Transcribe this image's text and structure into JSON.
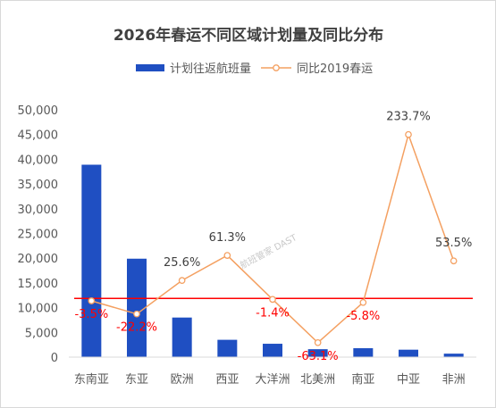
{
  "chart_data": {
    "type": "bar",
    "title": "2026年春运不同区域计划量及同比分布",
    "categories": [
      "东南亚",
      "东亚",
      "欧洲",
      "西亚",
      "大洋洲",
      "北美洲",
      "南亚",
      "中亚",
      "非洲"
    ],
    "series": [
      {
        "name": "计划往返航班量",
        "type": "bar",
        "axis": "left",
        "color": "#1f4fc2",
        "values": [
          38900,
          19900,
          8000,
          3500,
          2700,
          1600,
          1800,
          1500,
          700
        ]
      },
      {
        "name": "同比2019春运",
        "type": "line",
        "axis": "right",
        "color": "#f4a061",
        "values": [
          -3.5,
          -22.2,
          25.6,
          61.3,
          -1.4,
          -63.1,
          -5.8,
          233.7,
          53.5
        ],
        "labels": [
          "-3.5%",
          "-22.2%",
          "25.6%",
          "61.3%",
          "-1.4%",
          "-63.1%",
          "-5.8%",
          "233.7%",
          "53.5%"
        ]
      }
    ],
    "yticks": [
      "0",
      "5,000",
      "10,000",
      "15,000",
      "20,000",
      "25,000",
      "30,000",
      "35,000",
      "40,000",
      "45,000",
      "50,000"
    ],
    "ylim": [
      0,
      50000
    ],
    "reference_line": {
      "axis": "right",
      "value": 0,
      "color": "#ff0000"
    },
    "legend_position": "top",
    "grid": false,
    "watermark": "航班管家 DAST"
  }
}
